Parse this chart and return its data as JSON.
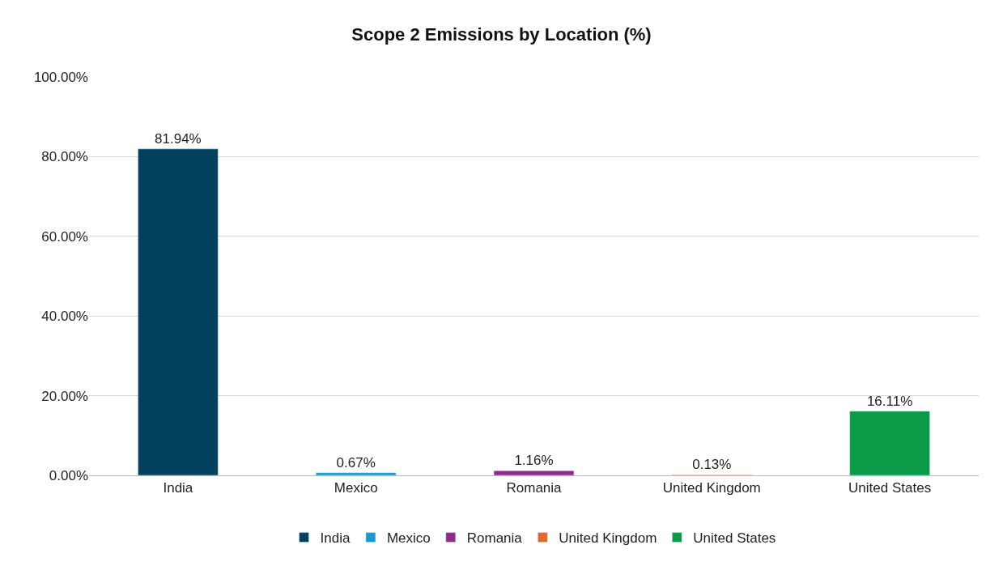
{
  "chart_data": {
    "type": "bar",
    "title": "Scope 2 Emissions by Location (%)",
    "categories": [
      "India",
      "Mexico",
      "Romania",
      "United Kingdom",
      "United States"
    ],
    "series": [
      {
        "name": "India",
        "color": "#03415e",
        "values": [
          81.94,
          null,
          null,
          null,
          null
        ],
        "value_labels": [
          "81.94%",
          null,
          null,
          null,
          null
        ]
      },
      {
        "name": "Mexico",
        "color": "#1b98cc",
        "values": [
          null,
          0.67,
          null,
          null,
          null
        ],
        "value_labels": [
          null,
          "0.67%",
          null,
          null,
          null
        ]
      },
      {
        "name": "Romania",
        "color": "#8e2b8c",
        "values": [
          null,
          null,
          1.16,
          null,
          null
        ],
        "value_labels": [
          null,
          null,
          "1.16%",
          null,
          null
        ]
      },
      {
        "name": "United Kingdom",
        "color": "#e0682a",
        "values": [
          null,
          null,
          null,
          0.13,
          null
        ],
        "value_labels": [
          null,
          null,
          null,
          "0.13%",
          null
        ]
      },
      {
        "name": "United States",
        "color": "#0a9a48",
        "values": [
          null,
          null,
          null,
          null,
          16.11
        ],
        "value_labels": [
          null,
          null,
          null,
          null,
          "16.11%"
        ]
      }
    ],
    "ylim": [
      0,
      100
    ],
    "yticks": [
      {
        "value": 0,
        "label": "0.00%"
      },
      {
        "value": 20,
        "label": "20.00%"
      },
      {
        "value": 40,
        "label": "40.00%"
      },
      {
        "value": 60,
        "label": "60.00%"
      },
      {
        "value": 80,
        "label": "80.00%"
      },
      {
        "value": 100,
        "label": "100.00%"
      }
    ],
    "grid": "y",
    "legend": "bottom"
  }
}
